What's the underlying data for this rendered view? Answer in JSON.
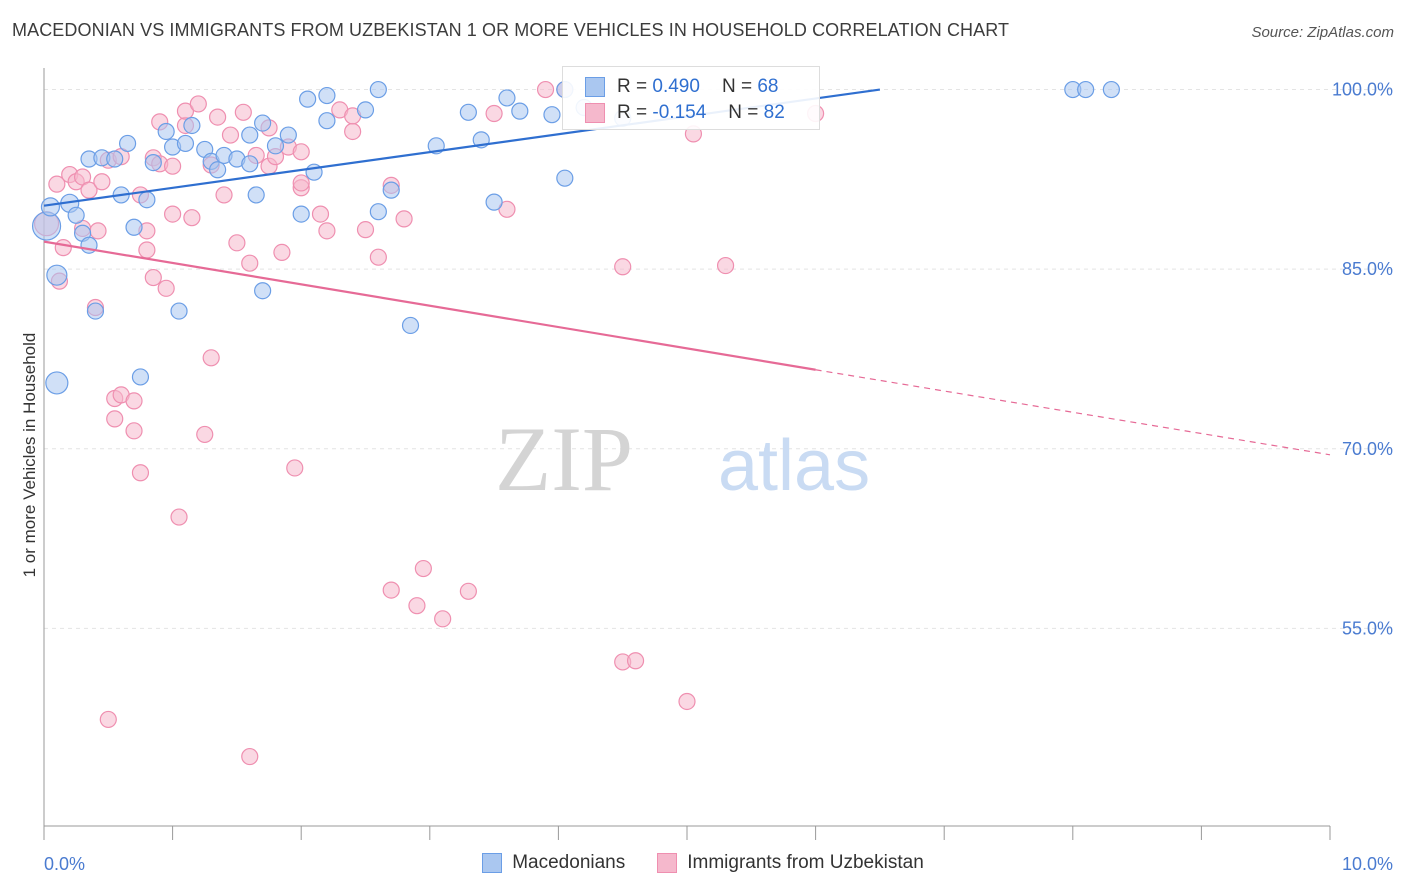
{
  "title": "MACEDONIAN VS IMMIGRANTS FROM UZBEKISTAN 1 OR MORE VEHICLES IN HOUSEHOLD CORRELATION CHART",
  "source": "Source: ZipAtlas.com",
  "watermark": {
    "part1": "ZIP",
    "part2": "atlas"
  },
  "legend_top": [
    {
      "r_label": "R =",
      "r_value": "0.490",
      "n_label": "N =",
      "n_value": "68",
      "color": "#aac7f0"
    },
    {
      "r_label": "R =",
      "r_value": "-0.154",
      "n_label": "N =",
      "n_value": "82",
      "color": "#f5b8cc"
    }
  ],
  "chart_data": {
    "type": "scatter",
    "title": "MACEDONIAN VS IMMIGRANTS FROM UZBEKISTAN 1 OR MORE VEHICLES IN HOUSEHOLD CORRELATION CHART",
    "xlabel": "",
    "ylabel": "1 or more Vehicles in Household",
    "xlim": [
      0,
      10
    ],
    "ylim": [
      38.5,
      101.8
    ],
    "x_tick_labels": [
      "0.0%",
      "10.0%"
    ],
    "y_ticks": [
      100,
      85,
      70,
      55
    ],
    "y_tick_labels": [
      "100.0%",
      "85.0%",
      "70.0%",
      "55.0%"
    ],
    "grid": true,
    "legend_position": "bottom",
    "series": [
      {
        "name": "Macedonians",
        "color": "#6b9ee6",
        "fill": "#aac7f0",
        "trend": {
          "x0": 0.0,
          "y0": 90.3,
          "x1": 6.5,
          "y1": 100.0,
          "dashed_to": null
        },
        "points": [
          [
            0.02,
            88.6,
            14
          ],
          [
            0.05,
            90.2,
            9
          ],
          [
            0.1,
            84.5,
            10
          ],
          [
            0.1,
            75.5,
            11
          ],
          [
            0.2,
            90.5,
            9
          ],
          [
            0.25,
            89.5,
            8
          ],
          [
            0.3,
            88.0,
            8
          ],
          [
            0.35,
            87.0,
            8
          ],
          [
            0.4,
            81.5,
            8
          ],
          [
            0.35,
            94.2,
            8
          ],
          [
            0.45,
            94.3,
            8
          ],
          [
            0.55,
            94.2,
            8
          ],
          [
            0.6,
            91.2,
            8
          ],
          [
            0.65,
            95.5,
            8
          ],
          [
            0.7,
            88.5,
            8
          ],
          [
            0.75,
            76.0,
            8
          ],
          [
            0.8,
            90.8,
            8
          ],
          [
            0.85,
            93.9,
            8
          ],
          [
            0.95,
            96.5,
            8
          ],
          [
            1.0,
            95.2,
            8
          ],
          [
            1.05,
            81.5,
            8
          ],
          [
            1.1,
            95.5,
            8
          ],
          [
            1.15,
            97.0,
            8
          ],
          [
            1.25,
            95.0,
            8
          ],
          [
            1.3,
            94.0,
            8
          ],
          [
            1.35,
            93.3,
            8
          ],
          [
            1.4,
            94.5,
            8
          ],
          [
            1.5,
            94.2,
            8
          ],
          [
            1.6,
            93.8,
            8
          ],
          [
            1.6,
            96.2,
            8
          ],
          [
            1.65,
            91.2,
            8
          ],
          [
            1.7,
            83.2,
            8
          ],
          [
            1.7,
            97.2,
            8
          ],
          [
            1.8,
            95.3,
            8
          ],
          [
            1.9,
            96.2,
            8
          ],
          [
            2.0,
            89.6,
            8
          ],
          [
            2.05,
            99.2,
            8
          ],
          [
            2.1,
            93.1,
            8
          ],
          [
            2.2,
            97.4,
            8
          ],
          [
            2.2,
            99.5,
            8
          ],
          [
            2.5,
            98.3,
            8
          ],
          [
            2.6,
            89.8,
            8
          ],
          [
            2.6,
            100.0,
            8
          ],
          [
            2.7,
            91.6,
            8
          ],
          [
            2.85,
            80.3,
            8
          ],
          [
            3.05,
            95.3,
            8
          ],
          [
            3.3,
            98.1,
            8
          ],
          [
            3.4,
            95.8,
            8
          ],
          [
            3.5,
            90.6,
            8
          ],
          [
            3.6,
            99.3,
            8
          ],
          [
            3.7,
            98.2,
            8
          ],
          [
            3.95,
            97.9,
            8
          ],
          [
            4.05,
            92.6,
            8
          ],
          [
            4.05,
            100.0,
            8
          ],
          [
            4.2,
            98.5,
            8
          ],
          [
            4.5,
            97.6,
            8
          ],
          [
            8.0,
            100.0,
            8
          ],
          [
            8.1,
            100.0,
            8
          ],
          [
            8.3,
            100.0,
            8
          ]
        ]
      },
      {
        "name": "Immigrants from Uzbekistan",
        "color": "#ef8fb0",
        "fill": "#f5b8cc",
        "trend": {
          "x0": 0.0,
          "y0": 87.3,
          "x1": 6.0,
          "y1": 76.6,
          "dashed_to": {
            "x": 10.0,
            "y": 69.5
          }
        },
        "points": [
          [
            0.02,
            88.8,
            12
          ],
          [
            0.1,
            92.1,
            8
          ],
          [
            0.12,
            84.0,
            8
          ],
          [
            0.15,
            86.8,
            8
          ],
          [
            0.2,
            92.9,
            8
          ],
          [
            0.25,
            92.3,
            8
          ],
          [
            0.3,
            88.4,
            8
          ],
          [
            0.3,
            92.7,
            8
          ],
          [
            0.35,
            91.6,
            8
          ],
          [
            0.4,
            81.8,
            8
          ],
          [
            0.42,
            88.2,
            8
          ],
          [
            0.45,
            92.3,
            8
          ],
          [
            0.5,
            94.1,
            8
          ],
          [
            0.55,
            72.5,
            8
          ],
          [
            0.55,
            74.2,
            8
          ],
          [
            0.6,
            74.5,
            8
          ],
          [
            0.6,
            94.4,
            8
          ],
          [
            0.7,
            74.0,
            8
          ],
          [
            0.75,
            68.0,
            8
          ],
          [
            0.7,
            71.5,
            8
          ],
          [
            0.75,
            91.2,
            8
          ],
          [
            0.8,
            86.6,
            8
          ],
          [
            0.85,
            84.3,
            8
          ],
          [
            0.85,
            94.3,
            8
          ],
          [
            0.9,
            93.8,
            8
          ],
          [
            0.9,
            97.3,
            8
          ],
          [
            0.95,
            83.4,
            8
          ],
          [
            1.0,
            89.6,
            8
          ],
          [
            1.0,
            93.6,
            8
          ],
          [
            1.05,
            64.3,
            8
          ],
          [
            1.1,
            97.0,
            8
          ],
          [
            1.1,
            98.2,
            8
          ],
          [
            1.15,
            89.3,
            8
          ],
          [
            1.2,
            98.8,
            8
          ],
          [
            1.25,
            71.2,
            8
          ],
          [
            1.3,
            93.7,
            8
          ],
          [
            1.3,
            77.6,
            8
          ],
          [
            1.35,
            97.7,
            8
          ],
          [
            1.4,
            91.2,
            8
          ],
          [
            1.45,
            96.2,
            8
          ],
          [
            1.5,
            87.2,
            8
          ],
          [
            1.55,
            98.1,
            8
          ],
          [
            1.6,
            85.5,
            8
          ],
          [
            1.65,
            94.5,
            8
          ],
          [
            1.75,
            93.6,
            8
          ],
          [
            1.75,
            96.8,
            8
          ],
          [
            1.8,
            94.4,
            8
          ],
          [
            1.85,
            86.4,
            8
          ],
          [
            1.95,
            68.4,
            8
          ],
          [
            1.9,
            95.2,
            8
          ],
          [
            2.0,
            91.8,
            8
          ],
          [
            2.0,
            94.8,
            8
          ],
          [
            2.0,
            92.2,
            8
          ],
          [
            2.15,
            89.6,
            8
          ],
          [
            2.2,
            88.2,
            8
          ],
          [
            2.3,
            98.3,
            8
          ],
          [
            2.4,
            96.5,
            8
          ],
          [
            2.4,
            97.8,
            8
          ],
          [
            2.5,
            88.3,
            8
          ],
          [
            2.6,
            86.0,
            8
          ],
          [
            2.7,
            92.0,
            8
          ],
          [
            2.7,
            58.2,
            8
          ],
          [
            2.8,
            89.2,
            8
          ],
          [
            2.9,
            56.9,
            8
          ],
          [
            2.95,
            60.0,
            8
          ],
          [
            3.1,
            55.8,
            8
          ],
          [
            3.3,
            58.1,
            8
          ],
          [
            3.5,
            98.0,
            8
          ],
          [
            3.6,
            90.0,
            8
          ],
          [
            3.9,
            100.0,
            8
          ],
          [
            4.05,
            100.0,
            8
          ],
          [
            4.5,
            85.2,
            8
          ],
          [
            4.5,
            52.2,
            8
          ],
          [
            4.6,
            52.3,
            8
          ],
          [
            5.0,
            48.9,
            8
          ],
          [
            5.05,
            96.3,
            8
          ],
          [
            5.3,
            85.3,
            8
          ],
          [
            0.5,
            47.4,
            8
          ],
          [
            1.6,
            44.3,
            8
          ],
          [
            0.8,
            88.2,
            8
          ],
          [
            6.0,
            98.0,
            8
          ]
        ]
      }
    ]
  }
}
